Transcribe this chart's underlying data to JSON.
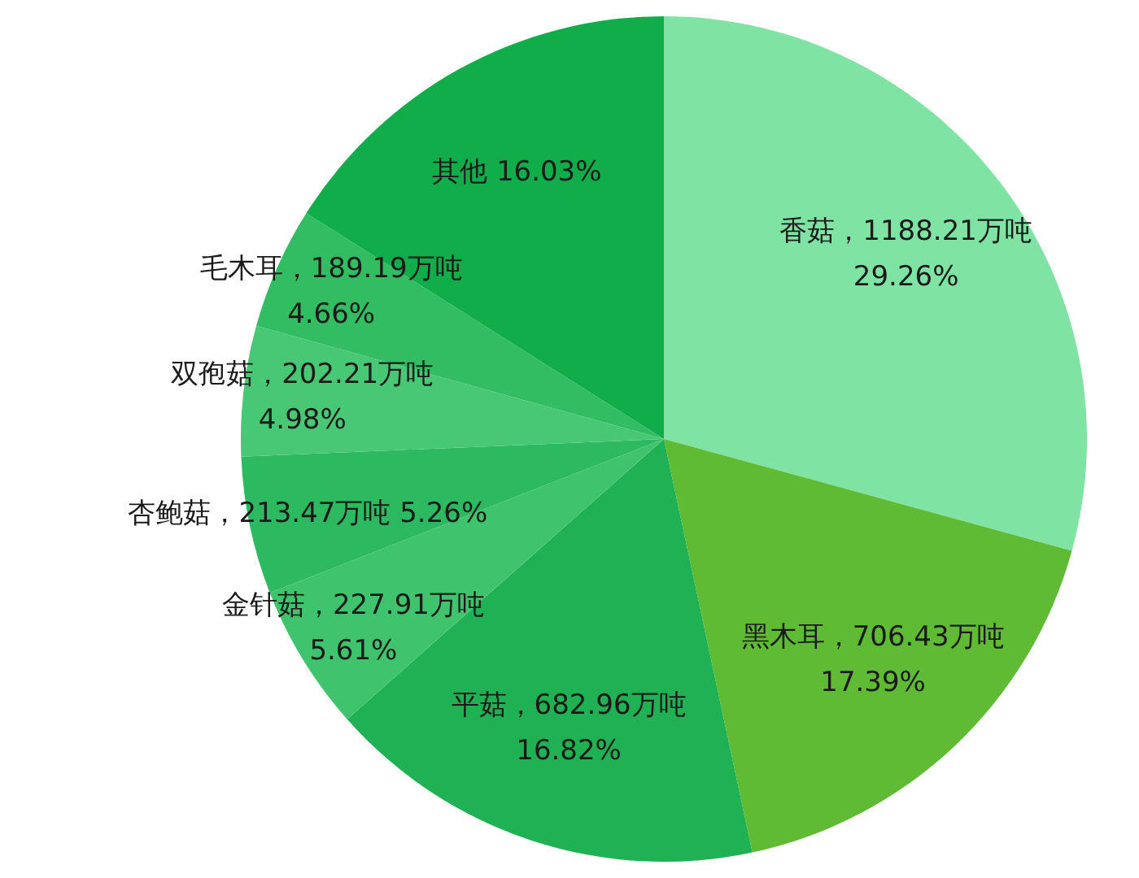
{
  "chart_data": {
    "type": "pie",
    "categories": [
      "香菇",
      "黑木耳",
      "平菇",
      "金针菇",
      "杏鲍菇",
      "双孢菇",
      "毛木耳",
      "其他"
    ],
    "values": [
      29.26,
      17.39,
      16.82,
      5.61,
      5.26,
      4.98,
      4.66,
      16.03
    ],
    "value_labels": [
      "，1188.21万吨\n29.26%",
      "，706.43万吨\n17.39%",
      "，682.96万吨\n16.82%",
      "，227.91万吨\n5.61%",
      "，213.47万吨 5.26%",
      "，202.21万吨\n4.98%",
      "，189.19万吨\n4.66%",
      " 16.03%"
    ],
    "colors": [
      "#7fe3a4",
      "#5fba34",
      "#1fb153",
      "#3fc46d",
      "#2cb95f",
      "#48c774",
      "#33bd63",
      "#10ad4a"
    ],
    "legend": false
  }
}
